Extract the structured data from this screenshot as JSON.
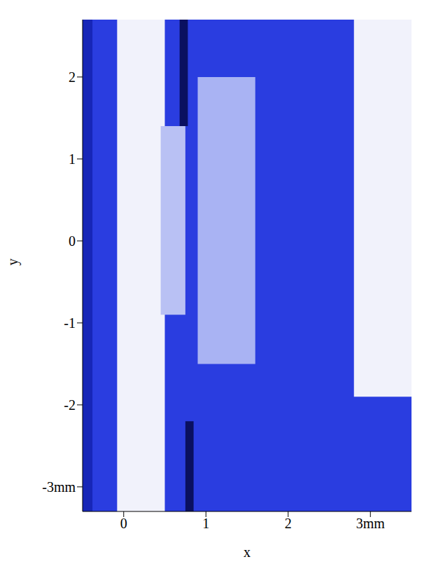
{
  "chart_data": {
    "type": "image",
    "x_label": "x",
    "y_label": "y",
    "xlim": [
      -0.5,
      3.5
    ],
    "ylim": [
      -3.3,
      2.7
    ],
    "xticks": [
      0,
      1,
      2,
      {
        "value": 3,
        "label": "3mm"
      }
    ],
    "yticks": [
      {
        "value": -3,
        "label": "-3mm"
      },
      -2,
      -1,
      0,
      1,
      2
    ],
    "color": "#2a3de0",
    "regions": [
      {
        "x": [
          -0.5,
          -0.38
        ],
        "y": [
          -3.3,
          2.7
        ],
        "color": "#1726b8"
      },
      {
        "x": [
          -0.08,
          0.5
        ],
        "y": [
          -3.3,
          2.7
        ],
        "color": "#f1f2fb"
      },
      {
        "x": [
          0.45,
          0.75
        ],
        "y": [
          -0.9,
          1.4
        ],
        "color": "#b9c1f4"
      },
      {
        "x": [
          0.9,
          1.6
        ],
        "y": [
          -1.5,
          2.0
        ],
        "color": "#a9b3f3"
      },
      {
        "x": [
          2.8,
          3.5
        ],
        "y": [
          -1.9,
          2.7
        ],
        "color": "#f1f2fb"
      },
      {
        "x": [
          0.68,
          0.78
        ],
        "y": [
          1.4,
          2.7
        ],
        "color": "#0a1060"
      },
      {
        "x": [
          0.75,
          0.85
        ],
        "y": [
          -3.3,
          -2.2
        ],
        "color": "#0a1060"
      }
    ]
  }
}
